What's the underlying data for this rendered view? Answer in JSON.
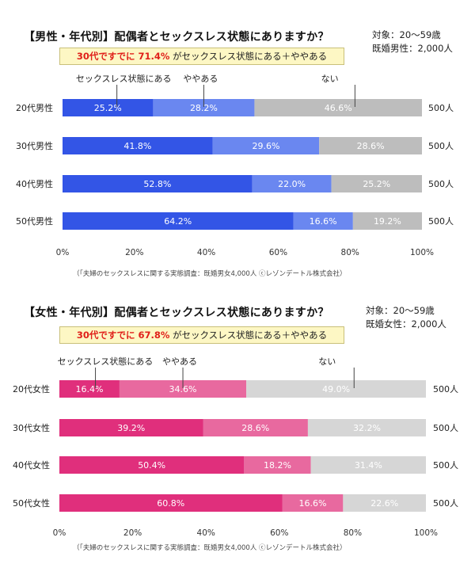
{
  "chart_data": [
    {
      "type": "bar",
      "orientation": "horizontal",
      "stacked": true,
      "title": "【男性・年代別】配偶者とセックスレス状態にありますか？",
      "subtitle_prefix": "30代ですでに 71.4%",
      "subtitle_suffix": " がセックスレス状態にある＋ややある",
      "meta_lines": [
        "対象：20〜59歳",
        "既婚男性：2,000人"
      ],
      "categories": [
        "20代男性",
        "30代男性",
        "40代男性",
        "50代男性"
      ],
      "series": [
        {
          "name": "セックスレス状態にある",
          "values": [
            25.2,
            41.8,
            52.8,
            64.2
          ],
          "labels": [
            "25.2%",
            "41.8%",
            "52.8%",
            "64.2%"
          ],
          "color": "#3355e6"
        },
        {
          "name": "ややある",
          "values": [
            28.2,
            29.6,
            22.0,
            16.6
          ],
          "labels": [
            "28.2%",
            "29.6%",
            "22.0%",
            "16.6%"
          ],
          "color": "#6a87f0"
        },
        {
          "name": "ない",
          "values": [
            46.6,
            28.6,
            25.2,
            19.2
          ],
          "labels": [
            "46.6%",
            "28.6%",
            "25.2%",
            "19.2%"
          ],
          "color": "#bdbdbd"
        }
      ],
      "n_labels": [
        "500人",
        "500人",
        "500人",
        "500人"
      ],
      "x_ticks": [
        "0%",
        "20%",
        "40%",
        "60%",
        "80%",
        "100%"
      ],
      "xlim": [
        0,
        100
      ],
      "source": "（「夫婦のセックスレスに関する実態調査：既婚男女4,000人 ⓒレゾンデートル株式会社）",
      "grid": false,
      "highlight_color": "#e0201a"
    },
    {
      "type": "bar",
      "orientation": "horizontal",
      "stacked": true,
      "title": "【女性・年代別】配偶者とセックスレス状態にありますか？",
      "subtitle_prefix": "30代ですでに 67.8%",
      "subtitle_suffix": " がセックスレス状態にある＋ややある",
      "meta_lines": [
        "対象：20〜59歳",
        "既婚女性：2,000人"
      ],
      "categories": [
        "20代女性",
        "30代女性",
        "40代女性",
        "50代女性"
      ],
      "series": [
        {
          "name": "セックスレス状態にある",
          "values": [
            16.4,
            39.2,
            50.4,
            60.8
          ],
          "labels": [
            "16.4%",
            "39.2%",
            "50.4%",
            "60.8%"
          ],
          "color": "#e02f7c"
        },
        {
          "name": "ややある",
          "values": [
            34.6,
            28.6,
            18.2,
            16.6
          ],
          "labels": [
            "34.6%",
            "28.6%",
            "18.2%",
            "16.6%"
          ],
          "color": "#e8699f"
        },
        {
          "name": "ない",
          "values": [
            49.0,
            32.2,
            31.4,
            22.6
          ],
          "labels": [
            "49.0%",
            "32.2%",
            "31.4%",
            "22.6%"
          ],
          "color": "#d6d6d6"
        }
      ],
      "n_labels": [
        "500人",
        "500人",
        "500人",
        "500人"
      ],
      "x_ticks": [
        "0%",
        "20%",
        "40%",
        "60%",
        "80%",
        "100%"
      ],
      "xlim": [
        0,
        100
      ],
      "source": "（「夫婦のセックスレスに関する実態調査：既婚男女4,000人 ⓒレゾンデートル株式会社）",
      "grid": false,
      "highlight_color": "#e0201a"
    }
  ]
}
